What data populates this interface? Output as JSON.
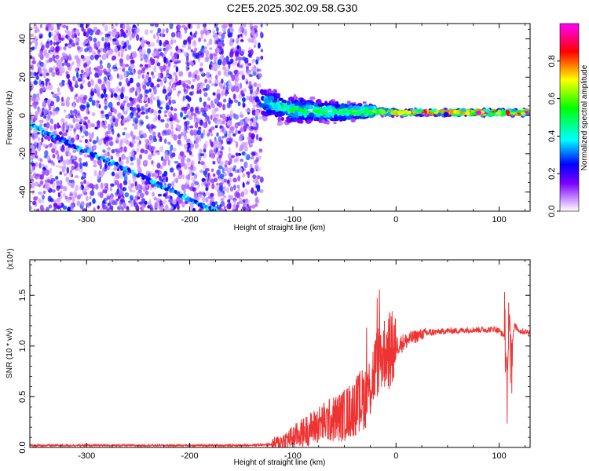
{
  "page_title": "C2E5.2025.302.09.58.G30",
  "chart_data": [
    {
      "type": "heatmap",
      "title": "C2E5.2025.302.09.58.G30",
      "xlabel": "Height of straight line (km)",
      "ylabel": "Frequency (Hz)",
      "xlim": [
        -355,
        130
      ],
      "ylim": [
        -50,
        48
      ],
      "x_ticks": [
        -300,
        -200,
        -100,
        0,
        100
      ],
      "x_tick_labels": [
        "-300",
        "-200",
        "-100",
        "0",
        "100"
      ],
      "y_ticks": [
        -40,
        -20,
        0,
        20,
        40
      ],
      "y_tick_labels": [
        "-40",
        "-20",
        "0",
        "20",
        "40"
      ],
      "colorbar": {
        "label": "Normalized spectral amplitude",
        "range": [
          0.0,
          1.0
        ],
        "ticks": [
          0.0,
          0.2,
          0.4,
          0.6,
          0.8
        ],
        "tick_labels": [
          "0.0",
          "0.2",
          "0.4",
          "0.6",
          "0.8"
        ],
        "colormap": [
          "#ffffff",
          "#cc99ff",
          "#7a00ff",
          "#0000ff",
          "#00ffff",
          "#00ff00",
          "#ffff00",
          "#ff0000",
          "#ff00ff"
        ]
      },
      "features": [
        {
          "name": "noise",
          "x_range": [
            -355,
            -130
          ],
          "y_range": [
            -50,
            48
          ],
          "amplitude": [
            0.05,
            0.3
          ]
        },
        {
          "name": "descending-track",
          "x": [
            -355,
            -175
          ],
          "y": [
            -5,
            -50
          ],
          "amplitude": 0.35
        },
        {
          "name": "signal-band",
          "x": [
            -130,
            -100,
            -60,
            -20,
            0,
            40,
            80,
            130
          ],
          "y": [
            7,
            3,
            2,
            2,
            1.5,
            1.5,
            1.5,
            1.5
          ],
          "amplitude": [
            0.4,
            0.5,
            0.55,
            0.7,
            0.9,
            0.95,
            0.95,
            0.9
          ]
        }
      ],
      "grid": false
    },
    {
      "type": "line",
      "title": "",
      "xlabel": "Height of straight line (km)",
      "ylabel": "SNR (10 * v/v)",
      "y_multiplier": "(x10⁴)",
      "xlim": [
        -355,
        130
      ],
      "ylim": [
        0,
        1.85
      ],
      "x_ticks": [
        -300,
        -200,
        -100,
        0,
        100
      ],
      "x_tick_labels": [
        "-300",
        "-200",
        "-100",
        "0",
        "100"
      ],
      "y_ticks": [
        0.0,
        0.5,
        1.0,
        1.5
      ],
      "y_tick_labels": [
        "0.0",
        "0.5",
        "1.0",
        "1.5"
      ],
      "series": [
        {
          "color": "#ee3333",
          "x": [
            -355,
            -300,
            -250,
            -200,
            -150,
            -120,
            -110,
            -100,
            -90,
            -80,
            -70,
            -60,
            -50,
            -40,
            -30,
            -25,
            -20,
            -15,
            -10,
            -5,
            0,
            10,
            20,
            30,
            40,
            50,
            60,
            70,
            80,
            90,
            95,
            100,
            105,
            108,
            110,
            112,
            115,
            120,
            125,
            130
          ],
          "y": [
            0.02,
            0.02,
            0.02,
            0.02,
            0.02,
            0.03,
            0.06,
            0.1,
            0.15,
            0.2,
            0.25,
            0.28,
            0.32,
            0.4,
            0.5,
            0.6,
            0.8,
            0.9,
            0.95,
            0.95,
            1.0,
            1.05,
            1.1,
            1.13,
            1.14,
            1.15,
            1.15,
            1.16,
            1.16,
            1.16,
            1.17,
            1.15,
            1.1,
            0.7,
            1.3,
            1.0,
            1.2,
            1.15,
            1.14,
            1.14
          ]
        }
      ],
      "grid": false
    }
  ]
}
